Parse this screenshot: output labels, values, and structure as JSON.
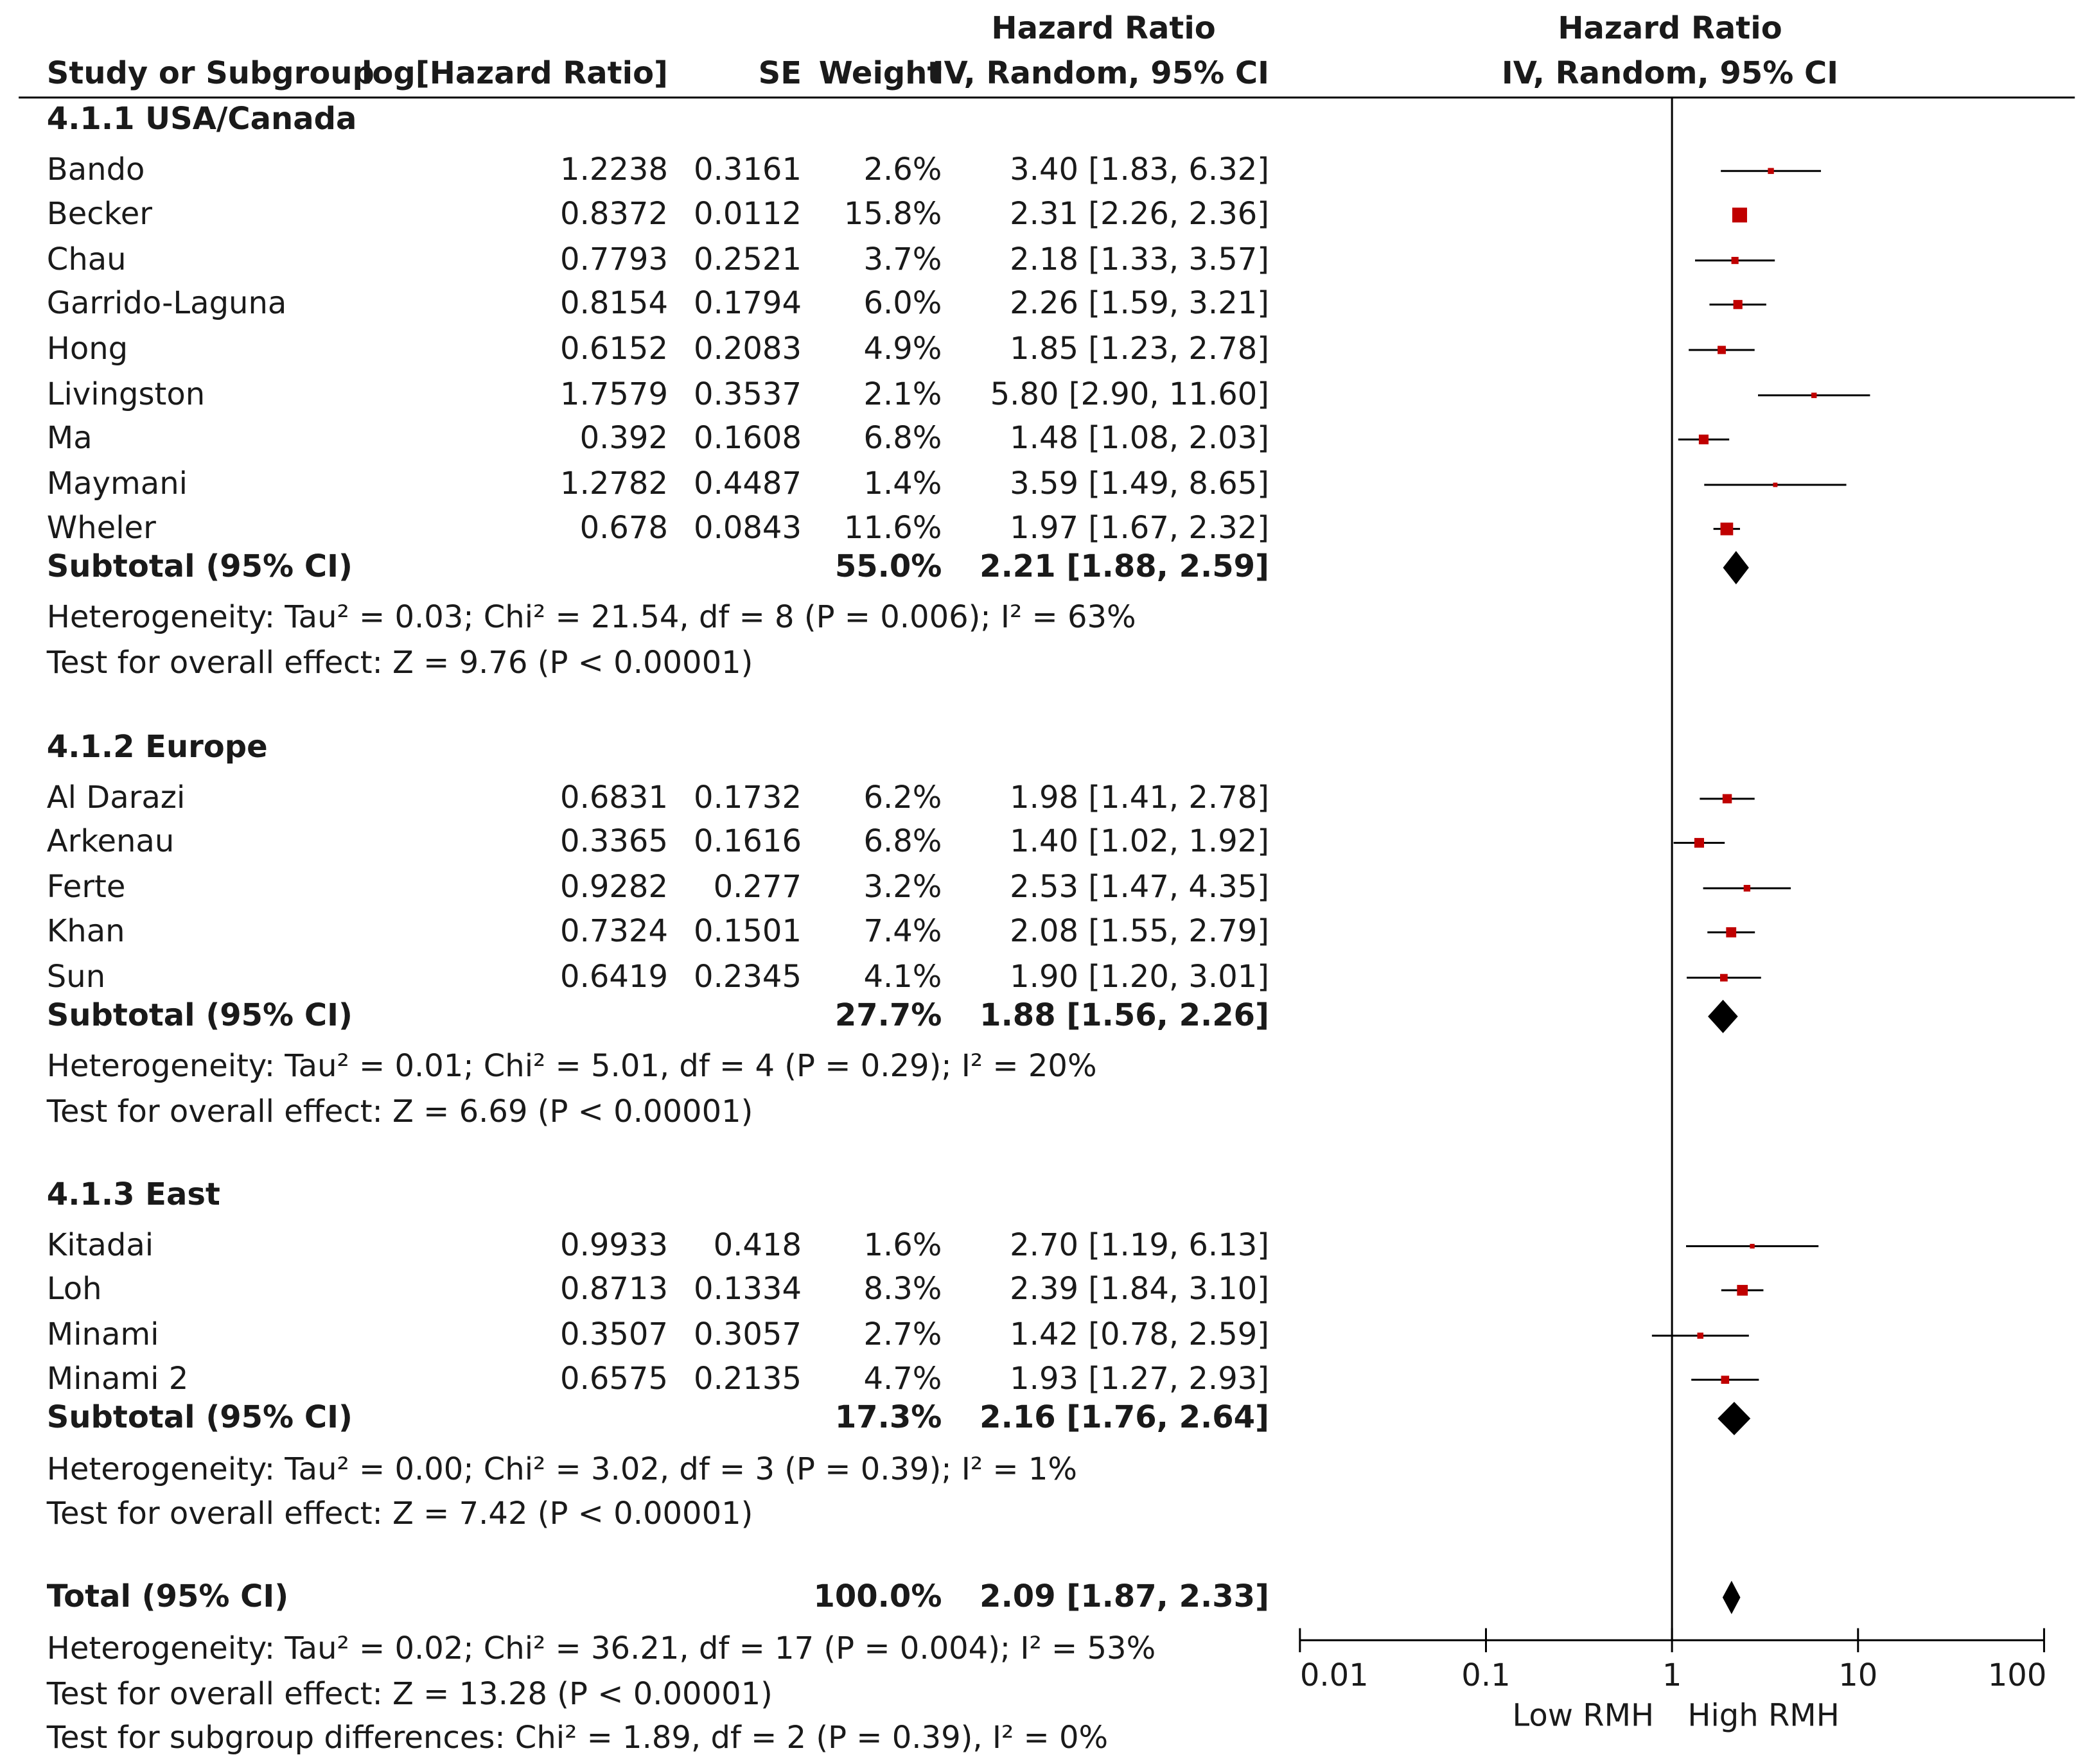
{
  "header": {
    "hr_title_left": "Hazard Ratio",
    "hr_title_right": "Hazard Ratio",
    "col_study": "Study or Subgroup",
    "col_loghr": "log[Hazard Ratio]",
    "col_se": "SE",
    "col_weight": "Weight",
    "col_ci_left": "IV, Random, 95% CI",
    "col_ci_right": "IV, Random, 95% CI"
  },
  "groups": [
    {
      "title": "4.1.1 USA/Canada",
      "studies": [
        {
          "name": "Bando",
          "loghr": "1.2238",
          "se": "0.3161",
          "weight": "2.6%",
          "ci": "3.40 [1.83, 6.32]"
        },
        {
          "name": "Becker",
          "loghr": "0.8372",
          "se": "0.0112",
          "weight": "15.8%",
          "ci": "2.31 [2.26, 2.36]"
        },
        {
          "name": "Chau",
          "loghr": "0.7793",
          "se": "0.2521",
          "weight": "3.7%",
          "ci": "2.18 [1.33, 3.57]"
        },
        {
          "name": "Garrido-Laguna",
          "loghr": "0.8154",
          "se": "0.1794",
          "weight": "6.0%",
          "ci": "2.26 [1.59, 3.21]"
        },
        {
          "name": "Hong",
          "loghr": "0.6152",
          "se": "0.2083",
          "weight": "4.9%",
          "ci": "1.85 [1.23, 2.78]"
        },
        {
          "name": "Livingston",
          "loghr": "1.7579",
          "se": "0.3537",
          "weight": "2.1%",
          "ci": "5.80 [2.90, 11.60]"
        },
        {
          "name": "Ma",
          "loghr": "0.392",
          "se": "0.1608",
          "weight": "6.8%",
          "ci": "1.48 [1.08, 2.03]"
        },
        {
          "name": "Maymani",
          "loghr": "1.2782",
          "se": "0.4487",
          "weight": "1.4%",
          "ci": "3.59 [1.49, 8.65]"
        },
        {
          "name": "Wheler",
          "loghr": "0.678",
          "se": "0.0843",
          "weight": "11.6%",
          "ci": "1.97 [1.67, 2.32]"
        }
      ],
      "subtotal": {
        "label": "Subtotal (95% CI)",
        "weight": "55.0%",
        "ci": "2.21 [1.88, 2.59]"
      },
      "heterogeneity": "Heterogeneity: Tau² = 0.03; Chi² = 21.54, df = 8 (P = 0.006); I² = 63%",
      "overall": "Test for overall effect: Z = 9.76 (P < 0.00001)"
    },
    {
      "title": "4.1.2 Europe",
      "studies": [
        {
          "name": "Al Darazi",
          "loghr": "0.6831",
          "se": "0.1732",
          "weight": "6.2%",
          "ci": "1.98 [1.41, 2.78]"
        },
        {
          "name": "Arkenau",
          "loghr": "0.3365",
          "se": "0.1616",
          "weight": "6.8%",
          "ci": "1.40 [1.02, 1.92]"
        },
        {
          "name": "Ferte",
          "loghr": "0.9282",
          "se": "0.277",
          "weight": "3.2%",
          "ci": "2.53 [1.47, 4.35]"
        },
        {
          "name": "Khan",
          "loghr": "0.7324",
          "se": "0.1501",
          "weight": "7.4%",
          "ci": "2.08 [1.55, 2.79]"
        },
        {
          "name": "Sun",
          "loghr": "0.6419",
          "se": "0.2345",
          "weight": "4.1%",
          "ci": "1.90 [1.20, 3.01]"
        }
      ],
      "subtotal": {
        "label": "Subtotal (95% CI)",
        "weight": "27.7%",
        "ci": "1.88 [1.56, 2.26]"
      },
      "heterogeneity": "Heterogeneity: Tau² = 0.01; Chi² = 5.01, df = 4 (P = 0.29); I² = 20%",
      "overall": "Test for overall effect: Z = 6.69 (P < 0.00001)"
    },
    {
      "title": "4.1.3 East",
      "studies": [
        {
          "name": "Kitadai",
          "loghr": "0.9933",
          "se": "0.418",
          "weight": "1.6%",
          "ci": "2.70 [1.19, 6.13]"
        },
        {
          "name": "Loh",
          "loghr": "0.8713",
          "se": "0.1334",
          "weight": "8.3%",
          "ci": "2.39 [1.84, 3.10]"
        },
        {
          "name": "Minami",
          "loghr": "0.3507",
          "se": "0.3057",
          "weight": "2.7%",
          "ci": "1.42 [0.78, 2.59]"
        },
        {
          "name": "Minami 2",
          "loghr": "0.6575",
          "se": "0.2135",
          "weight": "4.7%",
          "ci": "1.93 [1.27, 2.93]"
        }
      ],
      "subtotal": {
        "label": "Subtotal (95% CI)",
        "weight": "17.3%",
        "ci": "2.16 [1.76, 2.64]"
      },
      "heterogeneity": "Heterogeneity: Tau² = 0.00; Chi² = 3.02, df = 3 (P = 0.39); I² = 1%",
      "overall": "Test for overall effect: Z = 7.42 (P < 0.00001)"
    }
  ],
  "total": {
    "label": "Total (95% CI)",
    "weight": "100.0%",
    "ci": "2.09 [1.87, 2.33]",
    "heterogeneity": "Heterogeneity: Tau² = 0.02; Chi² = 36.21, df = 17 (P = 0.004); I² = 53%",
    "overall": "Test for overall effect: Z = 13.28 (P < 0.00001)",
    "subgroup": "Test for subgroup differences: Chi² = 1.89, df = 2 (P = 0.39), I² = 0%"
  },
  "axis": {
    "ticks": [
      "0.01",
      "0.1",
      "1",
      "10",
      "100"
    ],
    "label_low": "Low RMH",
    "label_high": "High RMH"
  },
  "colors": {
    "study_marker": "#c00000",
    "line": "#000000",
    "text": "#1a1a1a"
  },
  "chart_data": {
    "type": "forest",
    "title": "Hazard Ratio — IV, Random, 95% CI",
    "xscale": "log",
    "xlim": [
      0.01,
      100
    ],
    "null_line": 1,
    "xlabel_left": "Low RMH",
    "xlabel_right": "High RMH",
    "groups": [
      {
        "name": "4.1.1 USA/Canada",
        "studies": [
          {
            "name": "Bando",
            "hr": 3.4,
            "lo": 1.83,
            "hi": 6.32,
            "weight": 2.6
          },
          {
            "name": "Becker",
            "hr": 2.31,
            "lo": 2.26,
            "hi": 2.36,
            "weight": 15.8
          },
          {
            "name": "Chau",
            "hr": 2.18,
            "lo": 1.33,
            "hi": 3.57,
            "weight": 3.7
          },
          {
            "name": "Garrido-Laguna",
            "hr": 2.26,
            "lo": 1.59,
            "hi": 3.21,
            "weight": 6.0
          },
          {
            "name": "Hong",
            "hr": 1.85,
            "lo": 1.23,
            "hi": 2.78,
            "weight": 4.9
          },
          {
            "name": "Livingston",
            "hr": 5.8,
            "lo": 2.9,
            "hi": 11.6,
            "weight": 2.1
          },
          {
            "name": "Ma",
            "hr": 1.48,
            "lo": 1.08,
            "hi": 2.03,
            "weight": 6.8
          },
          {
            "name": "Maymani",
            "hr": 3.59,
            "lo": 1.49,
            "hi": 8.65,
            "weight": 1.4
          },
          {
            "name": "Wheler",
            "hr": 1.97,
            "lo": 1.67,
            "hi": 2.32,
            "weight": 11.6
          }
        ],
        "subtotal": {
          "hr": 2.21,
          "lo": 1.88,
          "hi": 2.59
        }
      },
      {
        "name": "4.1.2 Europe",
        "studies": [
          {
            "name": "Al Darazi",
            "hr": 1.98,
            "lo": 1.41,
            "hi": 2.78,
            "weight": 6.2
          },
          {
            "name": "Arkenau",
            "hr": 1.4,
            "lo": 1.02,
            "hi": 1.92,
            "weight": 6.8
          },
          {
            "name": "Ferte",
            "hr": 2.53,
            "lo": 1.47,
            "hi": 4.35,
            "weight": 3.2
          },
          {
            "name": "Khan",
            "hr": 2.08,
            "lo": 1.55,
            "hi": 2.79,
            "weight": 7.4
          },
          {
            "name": "Sun",
            "hr": 1.9,
            "lo": 1.2,
            "hi": 3.01,
            "weight": 4.1
          }
        ],
        "subtotal": {
          "hr": 1.88,
          "lo": 1.56,
          "hi": 2.26
        }
      },
      {
        "name": "4.1.3 East",
        "studies": [
          {
            "name": "Kitadai",
            "hr": 2.7,
            "lo": 1.19,
            "hi": 6.13,
            "weight": 1.6
          },
          {
            "name": "Loh",
            "hr": 2.39,
            "lo": 1.84,
            "hi": 3.1,
            "weight": 8.3
          },
          {
            "name": "Minami",
            "hr": 1.42,
            "lo": 0.78,
            "hi": 2.59,
            "weight": 2.7
          },
          {
            "name": "Minami 2",
            "hr": 1.93,
            "lo": 1.27,
            "hi": 2.93,
            "weight": 4.7
          }
        ],
        "subtotal": {
          "hr": 2.16,
          "lo": 1.76,
          "hi": 2.64
        }
      }
    ],
    "total": {
      "hr": 2.09,
      "lo": 1.87,
      "hi": 2.33
    }
  }
}
